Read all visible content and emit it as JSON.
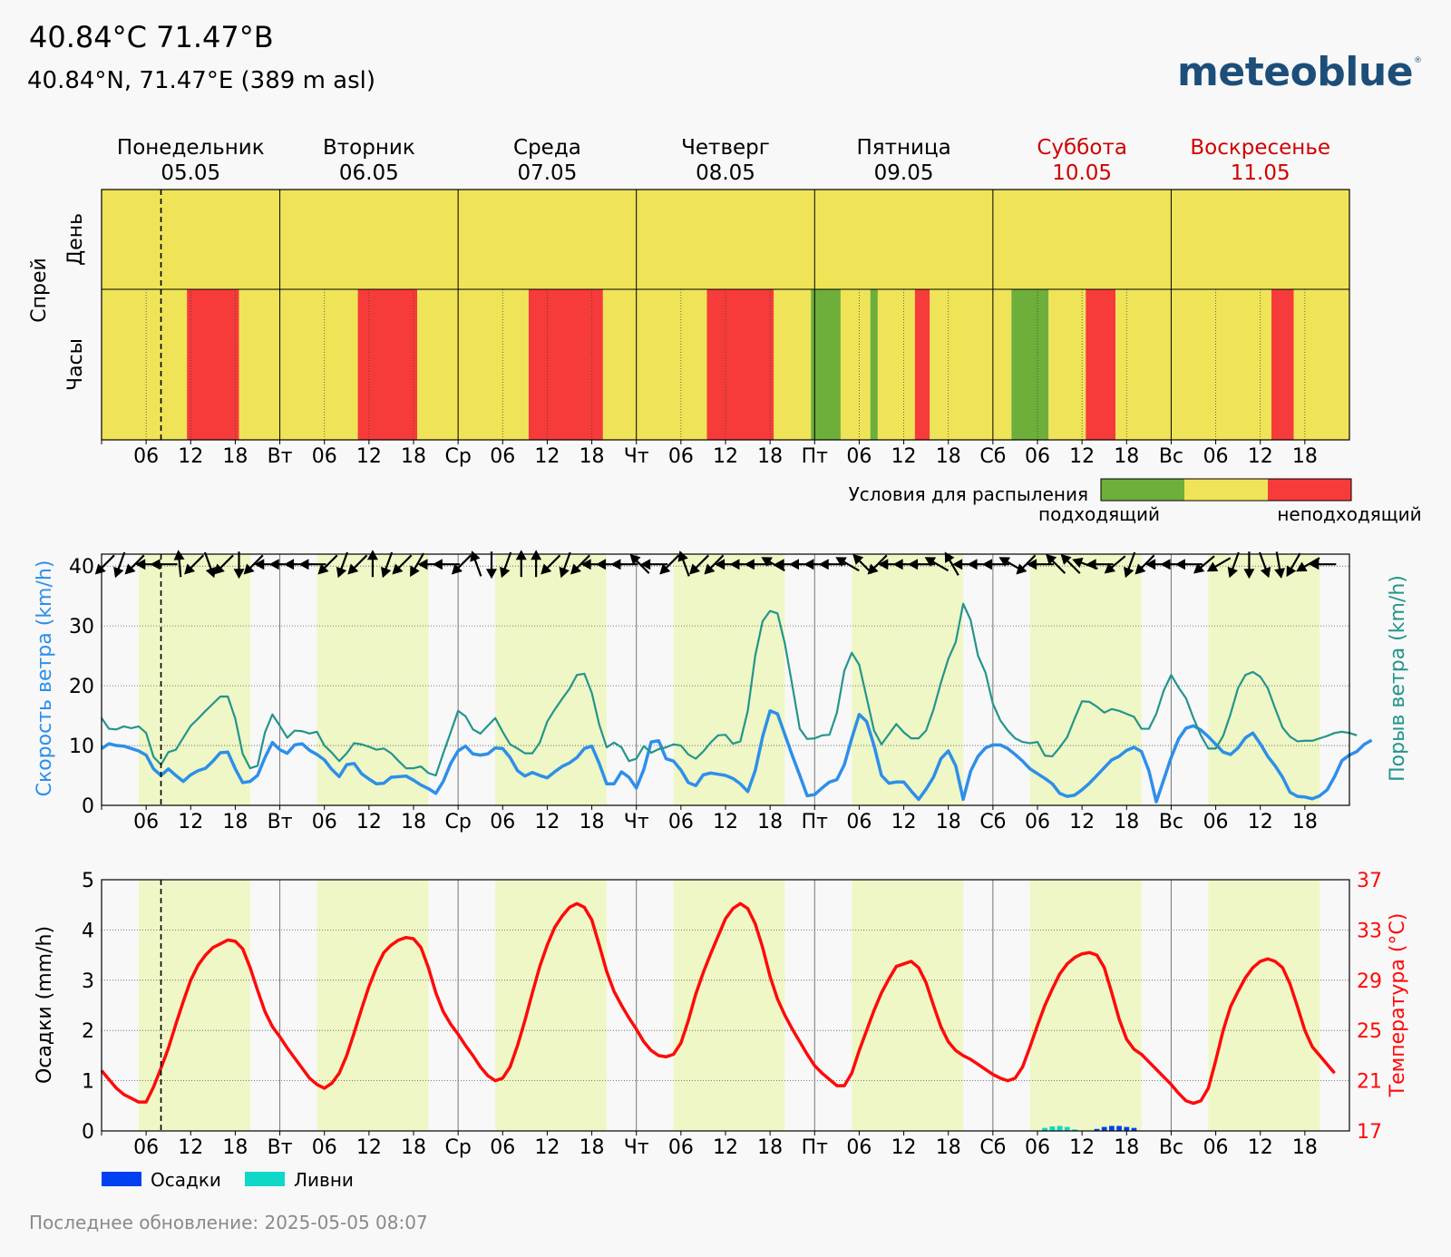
{
  "header": {
    "title": "40.84°C 71.47°B",
    "subtitle": "40.84°N, 71.47°E (389 m asl)",
    "logo": "meteoblue",
    "logo_mark": "®"
  },
  "footer": {
    "last_update": "Последнее обновление: 2025-05-05 08:07"
  },
  "colors": {
    "suitable": "#6daf3a",
    "neutral": "#efe458",
    "unsuitable": "#f73a3a",
    "daylight": "#eff7c6",
    "wind": "#2d8fe9",
    "gust": "#24958b",
    "temp": "#ff0a0a",
    "precip": "#0040f0",
    "shower": "#10d8c8",
    "weekend": "#d10000"
  },
  "days": [
    {
      "name": "Понедельник",
      "date": "05.05",
      "abbr": "",
      "weekend": false
    },
    {
      "name": "Вторник",
      "date": "06.05",
      "abbr": "Вт",
      "weekend": false
    },
    {
      "name": "Среда",
      "date": "07.05",
      "abbr": "Ср",
      "weekend": false
    },
    {
      "name": "Четверг",
      "date": "08.05",
      "abbr": "Чт",
      "weekend": false
    },
    {
      "name": "Пятница",
      "date": "09.05",
      "abbr": "Пт",
      "weekend": false
    },
    {
      "name": "Суббота",
      "date": "10.05",
      "abbr": "Сб",
      "weekend": true
    },
    {
      "name": "Воскресенье",
      "date": "11.05",
      "abbr": "Вс",
      "weekend": true
    }
  ],
  "hour_ticks": [
    "06",
    "12",
    "18"
  ],
  "now_hour": 8,
  "daylight_hours": [
    5,
    20
  ],
  "chart_data": [
    {
      "type": "heatmap",
      "ylabel": "Спрей",
      "rows": [
        "День",
        "Часы"
      ],
      "day_row": [
        "neutral",
        "neutral",
        "neutral",
        "neutral",
        "neutral",
        "neutral",
        "neutral"
      ],
      "hour_segments": [
        {
          "start": 0,
          "end": 11.5,
          "c": "neutral"
        },
        {
          "start": 11.5,
          "end": 18.5,
          "c": "unsuitable"
        },
        {
          "start": 18.5,
          "end": 34.5,
          "c": "neutral"
        },
        {
          "start": 34.5,
          "end": 42.5,
          "c": "unsuitable"
        },
        {
          "start": 42.5,
          "end": 57.5,
          "c": "neutral"
        },
        {
          "start": 57.5,
          "end": 67.5,
          "c": "unsuitable"
        },
        {
          "start": 67.5,
          "end": 81.5,
          "c": "neutral"
        },
        {
          "start": 81.5,
          "end": 90.5,
          "c": "unsuitable"
        },
        {
          "start": 90.5,
          "end": 95.5,
          "c": "neutral"
        },
        {
          "start": 95.5,
          "end": 99.5,
          "c": "suitable"
        },
        {
          "start": 99.5,
          "end": 103.5,
          "c": "neutral"
        },
        {
          "start": 103.5,
          "end": 104.5,
          "c": "suitable"
        },
        {
          "start": 104.5,
          "end": 109.5,
          "c": "neutral"
        },
        {
          "start": 109.5,
          "end": 111.5,
          "c": "unsuitable"
        },
        {
          "start": 111.5,
          "end": 122.5,
          "c": "neutral"
        },
        {
          "start": 122.5,
          "end": 127.5,
          "c": "suitable"
        },
        {
          "start": 127.5,
          "end": 132.5,
          "c": "neutral"
        },
        {
          "start": 132.5,
          "end": 136.5,
          "c": "unsuitable"
        },
        {
          "start": 136.5,
          "end": 157.5,
          "c": "neutral"
        },
        {
          "start": 157.5,
          "end": 160.5,
          "c": "unsuitable"
        },
        {
          "start": 160.5,
          "end": 168,
          "c": "neutral"
        }
      ],
      "legend": {
        "title": "Условия для распыления",
        "low": "подходящий",
        "high": "неподходящий"
      }
    },
    {
      "type": "line",
      "ylabel": "Скорость ветра (km/h)",
      "ylabel2": "Порыв ветра (km/h)",
      "ylim": [
        0,
        42
      ],
      "yticks": [
        0,
        10,
        20,
        30,
        40
      ],
      "x_step_hours": 1,
      "series": [
        {
          "key": "wind",
          "values": [
            9.5,
            10.3,
            10.0,
            9.9,
            9.5,
            9.1,
            8.4,
            6.1,
            5.0,
            6.1,
            5.0,
            4.0,
            5.1,
            5.8,
            6.2,
            7.4,
            8.8,
            8.9,
            6.1,
            3.8,
            4.0,
            5.0,
            8.0,
            10.5,
            9.3,
            8.7,
            10.1,
            10.3,
            9.2,
            8.5,
            7.6,
            6.0,
            4.8,
            6.8,
            7.0,
            5.3,
            4.4,
            3.6,
            3.7,
            4.7,
            4.8,
            4.9,
            4.2,
            3.4,
            2.8,
            2.0,
            4.0,
            7.0,
            9.1,
            9.9,
            8.6,
            8.4,
            8.6,
            9.6,
            9.5,
            8.0,
            5.8,
            4.9,
            5.5,
            5.0,
            4.6,
            5.6,
            6.5,
            7.1,
            8.0,
            9.5,
            9.9,
            7.0,
            3.6,
            3.6,
            5.6,
            4.7,
            2.9,
            6.0,
            10.6,
            10.8,
            7.8,
            7.4,
            5.9,
            3.8,
            3.3,
            5.1,
            5.4,
            5.2,
            5.0,
            4.5,
            3.6,
            2.3,
            5.8,
            11.5,
            15.8,
            15.3,
            11.8,
            8.3,
            5.0,
            1.6,
            1.8,
            2.9,
            3.9,
            4.3,
            6.8,
            11.2,
            15.2,
            14.0,
            10.0,
            5.0,
            3.7,
            3.9,
            3.9,
            2.4,
            1.0,
            2.7,
            4.7,
            7.8,
            9.1,
            6.6,
            1.0,
            5.7,
            8.2,
            9.6,
            10.1,
            10.1,
            9.5,
            8.5,
            7.4,
            6.1,
            5.3,
            4.5,
            3.6,
            2.0,
            1.5,
            1.7,
            2.6,
            3.7,
            5.0,
            6.3,
            7.6,
            8.2,
            9.2,
            9.7,
            9.0,
            5.8,
            0.6,
            4.3,
            8.0,
            11.1,
            12.9,
            13.3,
            12.6,
            11.5,
            10.2,
            8.9,
            8.5,
            9.6,
            11.3,
            12.1,
            10.3,
            8.2,
            6.6,
            4.7,
            2.2,
            1.5,
            1.4,
            1.1,
            1.6,
            2.6,
            4.8,
            7.5,
            8.4,
            9.0,
            10.2,
            10.9
          ]
        },
        {
          "key": "gust",
          "values": [
            14.6,
            12.8,
            12.7,
            13.2,
            12.9,
            13.2,
            12.1,
            8.1,
            6.8,
            8.9,
            9.3,
            11.3,
            13.3,
            14.5,
            15.8,
            17.0,
            18.2,
            18.2,
            14.5,
            8.6,
            6.2,
            6.6,
            12.2,
            15.2,
            13.3,
            11.3,
            12.5,
            12.4,
            12.0,
            12.3,
            10.0,
            8.8,
            7.4,
            8.7,
            10.4,
            10.2,
            9.8,
            9.3,
            9.5,
            8.7,
            7.4,
            6.2,
            6.2,
            6.5,
            5.4,
            5.0,
            8.7,
            12.2,
            15.8,
            14.9,
            12.7,
            12.0,
            13.3,
            14.6,
            12.3,
            10.2,
            9.5,
            8.7,
            8.7,
            10.5,
            14.0,
            16.0,
            17.8,
            19.5,
            21.8,
            22.0,
            18.8,
            13.5,
            9.7,
            10.5,
            9.7,
            7.4,
            7.8,
            9.9,
            8.8,
            9.4,
            9.7,
            10.2,
            10.0,
            8.5,
            7.8,
            9.0,
            10.5,
            11.7,
            11.8,
            10.3,
            10.7,
            15.8,
            25.0,
            30.8,
            32.5,
            32.1,
            27.0,
            20.0,
            12.8,
            11.1,
            11.2,
            11.7,
            11.8,
            15.5,
            22.5,
            25.5,
            23.5,
            18.0,
            12.5,
            10.2,
            11.9,
            13.6,
            12.2,
            11.2,
            11.2,
            12.5,
            16.0,
            20.5,
            24.5,
            27.3,
            33.7,
            31.0,
            25.0,
            22.2,
            17.0,
            14.2,
            12.5,
            11.2,
            10.6,
            10.4,
            10.6,
            8.3,
            8.2,
            9.7,
            11.4,
            14.5,
            17.4,
            17.3,
            16.5,
            15.5,
            16.1,
            15.8,
            15.3,
            14.8,
            12.8,
            12.8,
            15.3,
            19.2,
            21.8,
            19.7,
            17.9,
            14.6,
            11.7,
            9.5,
            9.5,
            11.6,
            15.3,
            19.6,
            21.8,
            22.3,
            21.5,
            19.6,
            16.2,
            13.0,
            11.5,
            10.7,
            10.8,
            10.8,
            11.2,
            11.6,
            12.1,
            12.3,
            12.1,
            11.7
          ]
        }
      ],
      "wind_dir_deg": [
        225,
        200,
        225,
        270,
        270,
        355,
        225,
        160,
        225,
        180,
        225,
        270,
        270,
        270,
        270,
        225,
        200,
        225,
        360,
        200,
        225,
        210,
        270,
        270,
        225,
        340,
        180,
        200,
        360,
        360,
        225,
        200,
        225,
        270,
        270,
        270,
        315,
        270,
        225,
        340,
        225,
        225,
        270,
        270,
        270,
        300,
        270,
        270,
        270,
        270,
        300,
        315,
        225,
        270,
        270,
        270,
        300,
        330,
        270,
        270,
        270,
        300,
        225,
        270,
        315,
        315,
        290,
        270,
        230,
        200,
        225,
        270,
        270,
        270,
        230,
        240,
        200,
        180,
        160,
        170,
        210,
        240,
        270
      ]
    },
    {
      "type": "line",
      "ylabel": "Осадки (mm/h)",
      "ylabel2": "Температура (°C)",
      "ylim": [
        0,
        5
      ],
      "yticks": [
        0,
        1,
        2,
        3,
        4,
        5
      ],
      "y2lim": [
        17,
        37
      ],
      "y2ticks": [
        17,
        21,
        25,
        29,
        33,
        37
      ],
      "series": [
        {
          "key": "temperature",
          "x_step_hours": 1,
          "values": [
            21.8,
            21.1,
            20.4,
            19.9,
            19.6,
            19.3,
            19.3,
            20.5,
            22.0,
            23.6,
            25.5,
            27.3,
            29.0,
            30.2,
            31.0,
            31.6,
            31.9,
            32.2,
            32.1,
            31.5,
            30.0,
            28.2,
            26.5,
            25.3,
            24.5,
            23.6,
            22.8,
            22.0,
            21.2,
            20.7,
            20.4,
            20.8,
            21.6,
            23.0,
            24.8,
            26.7,
            28.5,
            30.0,
            31.2,
            31.8,
            32.2,
            32.4,
            32.3,
            31.6,
            30.0,
            28.0,
            26.5,
            25.5,
            24.7,
            23.8,
            23.0,
            22.1,
            21.4,
            21.0,
            21.2,
            22.1,
            23.8,
            25.8,
            28.0,
            30.1,
            31.8,
            33.2,
            34.1,
            34.8,
            35.1,
            34.8,
            33.8,
            31.8,
            29.7,
            28.1,
            27.0,
            26.0,
            25.1,
            24.1,
            23.4,
            23.0,
            22.9,
            23.1,
            24.0,
            25.8,
            27.9,
            29.6,
            31.1,
            32.5,
            33.9,
            34.7,
            35.1,
            34.7,
            33.5,
            31.6,
            29.3,
            27.5,
            26.2,
            25.1,
            24.1,
            23.1,
            22.2,
            21.6,
            21.1,
            20.6,
            20.6,
            21.6,
            23.4,
            25.0,
            26.6,
            28.0,
            29.1,
            30.1,
            30.3,
            30.5,
            30.0,
            28.8,
            27.0,
            25.3,
            24.1,
            23.4,
            23.0,
            22.7,
            22.3,
            21.9,
            21.5,
            21.2,
            21.0,
            21.2,
            22.1,
            23.7,
            25.4,
            27.0,
            28.3,
            29.5,
            30.3,
            30.8,
            31.1,
            31.2,
            31.0,
            30.0,
            28.0,
            25.9,
            24.3,
            23.5,
            23.1,
            22.5,
            21.9,
            21.3,
            20.7,
            20.0,
            19.4,
            19.2,
            19.4,
            20.4,
            22.6,
            25.0,
            26.9,
            28.1,
            29.2,
            30.0,
            30.5,
            30.7,
            30.5,
            30.0,
            28.7,
            26.9,
            25.0,
            23.7,
            23.0,
            22.3,
            21.6
          ]
        },
        {
          "key": "precip",
          "x_step_hours": 1,
          "points": [
            [
              127,
              0.05
            ],
            [
              128,
              0.06
            ],
            [
              129,
              0.06
            ],
            [
              134,
              0.04
            ],
            [
              135,
              0.08
            ],
            [
              136,
              0.1
            ],
            [
              137,
              0.1
            ],
            [
              138,
              0.08
            ],
            [
              139,
              0.06
            ]
          ]
        },
        {
          "key": "showers",
          "x_step_hours": 1,
          "points": [
            [
              127,
              0.06
            ],
            [
              128,
              0.09
            ],
            [
              129,
              0.1
            ],
            [
              130,
              0.08
            ],
            [
              131,
              0.03
            ]
          ]
        }
      ],
      "legend": [
        "Осадки",
        "Ливни"
      ]
    }
  ]
}
